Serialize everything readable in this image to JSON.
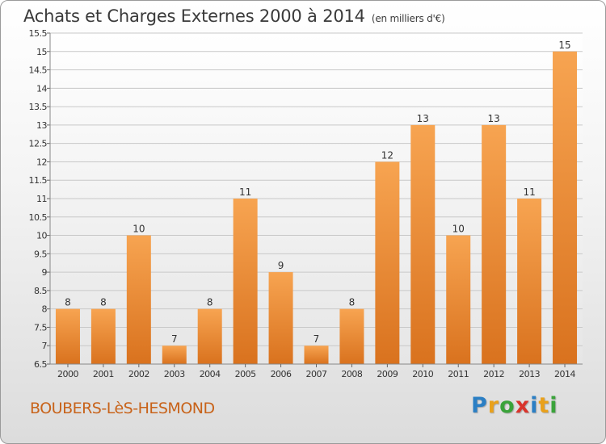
{
  "header": {
    "title": "Achats et Charges Externes 2000 à 2014",
    "unit": "(en milliers d'€)"
  },
  "footer": {
    "commune": "BOUBERS-LèS-HESMOND",
    "logo_letters": [
      {
        "ch": "P",
        "color": "#2b7fc4"
      },
      {
        "ch": "r",
        "color": "#e9a11c"
      },
      {
        "ch": "o",
        "color": "#3aa33a"
      },
      {
        "ch": "x",
        "color": "#d9342b"
      },
      {
        "ch": "i",
        "color": "#2b7fc4"
      },
      {
        "ch": "t",
        "color": "#e9a11c"
      },
      {
        "ch": "i",
        "color": "#3aa33a"
      }
    ]
  },
  "colors": {
    "bar_light": "#f7a451",
    "bar_dark": "#d9721e",
    "grid": "#c8c8c8",
    "axis_text": "#333333"
  },
  "chart_data": {
    "type": "bar",
    "categories": [
      "2000",
      "2001",
      "2002",
      "2003",
      "2004",
      "2005",
      "2006",
      "2007",
      "2008",
      "2009",
      "2010",
      "2011",
      "2012",
      "2013",
      "2014"
    ],
    "values": [
      8,
      8,
      10,
      7,
      8,
      11,
      9,
      7,
      8,
      12,
      13,
      10,
      13,
      11,
      15
    ],
    "data_labels": [
      "8",
      "8",
      "10",
      "7",
      "8",
      "11",
      "9",
      "7",
      "8",
      "12",
      "13",
      "10",
      "13",
      "11",
      "15"
    ],
    "ylim": [
      6.5,
      15.5
    ],
    "yticks": [
      6.5,
      7,
      7.5,
      8,
      8.5,
      9,
      9.5,
      10,
      10.5,
      11,
      11.5,
      12,
      12.5,
      13,
      13.5,
      14,
      14.5,
      15,
      15.5
    ],
    "ytick_labels": [
      "6.5",
      "7",
      "7.5",
      "8",
      "8.5",
      "9",
      "9.5",
      "10",
      "10.5",
      "11",
      "11.5",
      "12",
      "12.5",
      "13",
      "13.5",
      "14",
      "14.5",
      "15",
      "15.5"
    ],
    "grid": true,
    "xlabel": "",
    "ylabel": ""
  }
}
